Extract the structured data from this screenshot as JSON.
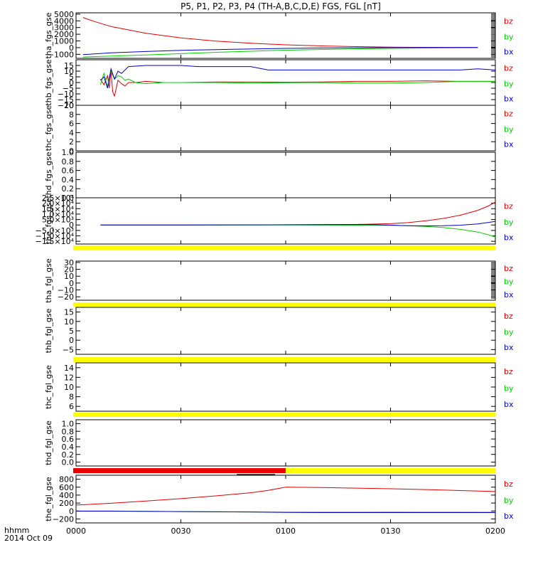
{
  "title": "P5, P1, P2, P3, P4 (TH-A,B,C,D,E) FGS, FGL [nT]",
  "colors": {
    "bz": "#e00000",
    "by": "#00d000",
    "bx": "#0000c8",
    "bar_yellow": "#ffff00",
    "bar_red": "#ee0000",
    "axis": "#000000"
  },
  "time_axis": {
    "label_top": "hhmm",
    "label_bottom": "2014 Oct 09",
    "ticks": [
      "0000",
      "0030",
      "0100",
      "0130",
      "0200"
    ],
    "range_min": [
      0,
      120
    ]
  },
  "legend_labels": [
    "bz",
    "by",
    "bx"
  ],
  "chart_data": [
    {
      "type": "line",
      "name": "tha_fgs_gse",
      "ylabel": "tha_fgs_gse",
      "ylim": [
        -1600,
        5200
      ],
      "yticks": [
        5000,
        4000,
        3000,
        2000,
        1000,
        0,
        -1000
      ],
      "ytick_labels": [
        "5000",
        "4000",
        "3000",
        "2000",
        "1000",
        "0",
        "−1000"
      ],
      "legend": true,
      "right_dense": true,
      "bar": null,
      "series": [
        {
          "name": "bz",
          "x": [
            2,
            5,
            10,
            20,
            30,
            40,
            50,
            60,
            70,
            80,
            90,
            100,
            110,
            115
          ],
          "y": [
            4500,
            3950,
            3150,
            2150,
            1450,
            970,
            650,
            420,
            260,
            150,
            80,
            40,
            20,
            10
          ]
        },
        {
          "name": "by",
          "x": [
            2,
            20,
            40,
            60,
            80,
            100,
            115
          ],
          "y": [
            -1400,
            -1100,
            -700,
            -380,
            -180,
            -60,
            -20
          ]
        },
        {
          "name": "bx",
          "x": [
            2,
            10,
            20,
            30,
            45,
            60,
            75,
            90,
            100,
            115
          ],
          "y": [
            -1050,
            -780,
            -580,
            -400,
            -240,
            -110,
            -40,
            0,
            10,
            15
          ]
        }
      ]
    },
    {
      "type": "line",
      "name": "thb_fgs_gse",
      "ylabel": "thb_fgs_gse",
      "ylim": [
        -20,
        20
      ],
      "yticks": [
        15,
        10,
        5,
        0,
        -5,
        -10,
        -15,
        -20
      ],
      "ytick_labels": [
        "15",
        "10",
        "5",
        "0",
        "−5",
        "−10",
        "−15",
        "−20"
      ],
      "legend": true,
      "right_dense": false,
      "bar": null,
      "series": [
        {
          "name": "bz",
          "x": [
            7,
            8,
            9,
            9.5,
            10,
            10.5,
            11,
            12,
            13,
            14,
            15,
            17,
            20,
            25,
            30,
            40,
            50,
            60,
            70,
            80,
            90,
            100,
            110,
            120
          ],
          "y": [
            3,
            -2,
            6,
            -5,
            10,
            -8,
            -12,
            2,
            -1,
            -3,
            0,
            0,
            1,
            0,
            0,
            0.5,
            0.5,
            0.3,
            0.5,
            1,
            1,
            1.5,
            1,
            1
          ]
        },
        {
          "name": "by",
          "x": [
            7,
            8,
            9,
            9.5,
            10,
            11,
            12,
            13,
            14,
            15,
            17,
            20,
            25,
            30,
            40,
            50,
            60,
            70,
            80,
            90,
            100,
            110,
            120
          ],
          "y": [
            -2,
            8,
            -4,
            5,
            10,
            3,
            6,
            5,
            2,
            3,
            0,
            -1,
            0,
            0,
            0,
            -0.5,
            -0.2,
            0,
            -0.5,
            -0.5,
            0,
            1,
            1
          ]
        },
        {
          "name": "bx",
          "x": [
            7,
            8,
            9,
            10,
            11,
            12,
            13,
            15,
            20,
            25,
            30,
            35,
            40,
            50,
            55,
            60,
            70,
            80,
            90,
            100,
            110,
            115,
            120
          ],
          "y": [
            2,
            5,
            -5,
            12,
            3,
            10,
            8,
            14,
            15,
            15,
            15,
            14,
            14,
            14,
            11,
            11,
            11,
            11,
            11,
            11,
            11,
            12,
            11
          ]
        }
      ]
    },
    {
      "type": "line",
      "name": "thc_fgs_gse",
      "ylabel": "thc_fgs_gse",
      "ylim": [
        0,
        10
      ],
      "yticks": [
        10,
        8,
        6,
        4,
        2,
        0
      ],
      "ytick_labels": [
        "10",
        "8",
        "6",
        "4",
        "2",
        "0"
      ],
      "legend": true,
      "right_dense": false,
      "bar": null,
      "series": []
    },
    {
      "type": "line",
      "name": "thd_fgs_gse",
      "ylabel": "thd_fgs_gse",
      "ylim": [
        0,
        1
      ],
      "yticks": [
        1.0,
        0.8,
        0.6,
        0.4,
        0.2,
        0.0
      ],
      "ytick_labels": [
        "1.0",
        "0.8",
        "0.6",
        "0.4",
        "0.2",
        "0.0"
      ],
      "legend": false,
      "right_dense": false,
      "bar": null,
      "series": []
    },
    {
      "type": "line",
      "name": "the_fgs_gse",
      "ylabel": "the_fgs_gse",
      "ylim": [
        -17500,
        25000
      ],
      "yticks": [
        25000,
        20000,
        15000,
        10000,
        5000,
        0,
        -5000,
        -10000,
        -15000
      ],
      "ytick_labels": [
        "2.5×10⁴",
        "2.0×10⁴",
        "1.5×10⁴",
        "1.0×10⁴",
        "5.0×10³",
        "0",
        "−5.0×10³",
        "−1.0×10⁴",
        "−1.5×10⁴"
      ],
      "legend": true,
      "right_dense": false,
      "bar": null,
      "series": [
        {
          "name": "bz",
          "x": [
            7,
            30,
            60,
            80,
            90,
            95,
            100,
            105,
            110,
            115,
            118,
            120
          ],
          "y": [
            0,
            0,
            150,
            500,
            1200,
            2200,
            3800,
            6000,
            9000,
            13500,
            17500,
            21000
          ]
        },
        {
          "name": "by",
          "x": [
            7,
            30,
            60,
            80,
            90,
            95,
            100,
            105,
            110,
            115,
            118,
            120
          ],
          "y": [
            0,
            0,
            -30,
            -150,
            -400,
            -700,
            -1300,
            -2300,
            -4000,
            -6500,
            -9000,
            -11000
          ]
        },
        {
          "name": "bx",
          "x": [
            7,
            30,
            60,
            80,
            85,
            90,
            95,
            100,
            105,
            110,
            115,
            120
          ],
          "y": [
            0,
            0,
            200,
            400,
            300,
            -200,
            -600,
            -800,
            -700,
            -200,
            1000,
            3200
          ]
        }
      ]
    },
    {
      "type": "line",
      "name": "tha_fgl_gse",
      "ylabel": "tha_fgl_gse",
      "ylim": [
        -25,
        32
      ],
      "yticks": [
        30,
        20,
        10,
        0,
        -10,
        -20
      ],
      "ytick_labels": [
        "30",
        "20",
        "10",
        "0",
        "−10",
        "−20"
      ],
      "legend": true,
      "right_dense": true,
      "bar": "yellow",
      "series": []
    },
    {
      "type": "line",
      "name": "thb_fgl_gse",
      "ylabel": "thb_fgl_gse",
      "ylim": [
        -7.5,
        17.5
      ],
      "yticks": [
        15,
        10,
        5,
        0,
        -5
      ],
      "ytick_labels": [
        "15",
        "10",
        "5",
        "0",
        "−5"
      ],
      "legend": true,
      "right_dense": false,
      "bar": "yellow",
      "series": []
    },
    {
      "type": "line",
      "name": "thc_fgl_gse",
      "ylabel": "thc_fgl_gse",
      "ylim": [
        5,
        15
      ],
      "yticks": [
        14,
        12,
        10,
        8,
        6
      ],
      "ytick_labels": [
        "14",
        "12",
        "10",
        "8",
        "6"
      ],
      "legend": true,
      "right_dense": false,
      "bar": "yellow",
      "series": []
    },
    {
      "type": "line",
      "name": "thd_fgl_gse",
      "ylabel": "thd_fgl_gse",
      "ylim": [
        -0.1,
        1.1
      ],
      "yticks": [
        1.0,
        0.8,
        0.6,
        0.4,
        0.2,
        0.0
      ],
      "ytick_labels": [
        "1.0",
        "0.8",
        "0.6",
        "0.4",
        "0.2",
        "0.0"
      ],
      "legend": false,
      "right_dense": false,
      "bar": "yellow",
      "series": []
    },
    {
      "type": "line",
      "name": "the_fgl_gse",
      "ylabel": "the_fgl_gse",
      "ylim": [
        -300,
        900
      ],
      "yticks": [
        800,
        600,
        400,
        200,
        0,
        -200
      ],
      "ytick_labels": [
        "800",
        "600",
        "400",
        "200",
        "0",
        "−200"
      ],
      "legend": true,
      "right_dense": false,
      "bar": "red-yellow",
      "bar_red_until": 60,
      "series": [
        {
          "name": "bz",
          "x": [
            0,
            10,
            20,
            30,
            40,
            50,
            55,
            60,
            70,
            80,
            90,
            100,
            110,
            120
          ],
          "y": [
            150,
            195,
            250,
            310,
            380,
            460,
            520,
            600,
            590,
            575,
            560,
            540,
            515,
            490
          ]
        },
        {
          "name": "by",
          "x": [
            0,
            10,
            20,
            30,
            40,
            50,
            60,
            70,
            80,
            90,
            100,
            110,
            120
          ],
          "y": [
            0,
            0,
            -10,
            -15,
            -20,
            -25,
            -30,
            -30,
            -30,
            -28,
            -30,
            -30,
            -32
          ]
        },
        {
          "name": "bx",
          "x": [
            0,
            10,
            20,
            30,
            40,
            50,
            60,
            70,
            80,
            90,
            100,
            110,
            120
          ],
          "y": [
            -5,
            -5,
            -10,
            -15,
            -20,
            -25,
            -35,
            -40,
            -40,
            -40,
            -40,
            -40,
            -40
          ]
        }
      ]
    }
  ]
}
